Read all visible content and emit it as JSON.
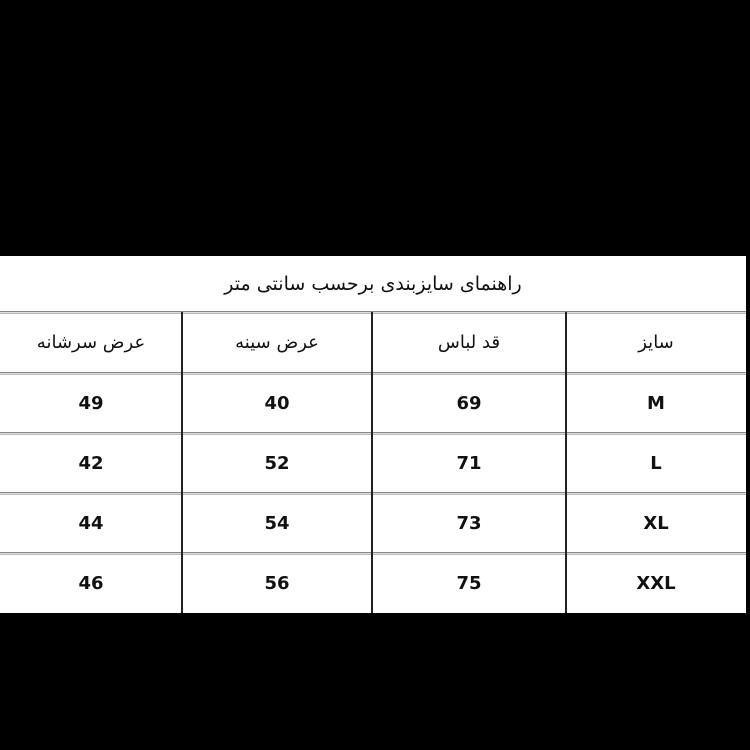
{
  "title": "راهنمای سایزبندی برحسب سانتی متر",
  "headers": [
    "عرض سرشانه",
    "عرض سینه",
    "قد لباس",
    "سایز"
  ],
  "rows": [
    [
      "49",
      "40",
      "69",
      "M"
    ],
    [
      "42",
      "52",
      "71",
      "L"
    ],
    [
      "44",
      "54",
      "73",
      "XL"
    ],
    [
      "46",
      "56",
      "75",
      "XXL"
    ]
  ]
}
